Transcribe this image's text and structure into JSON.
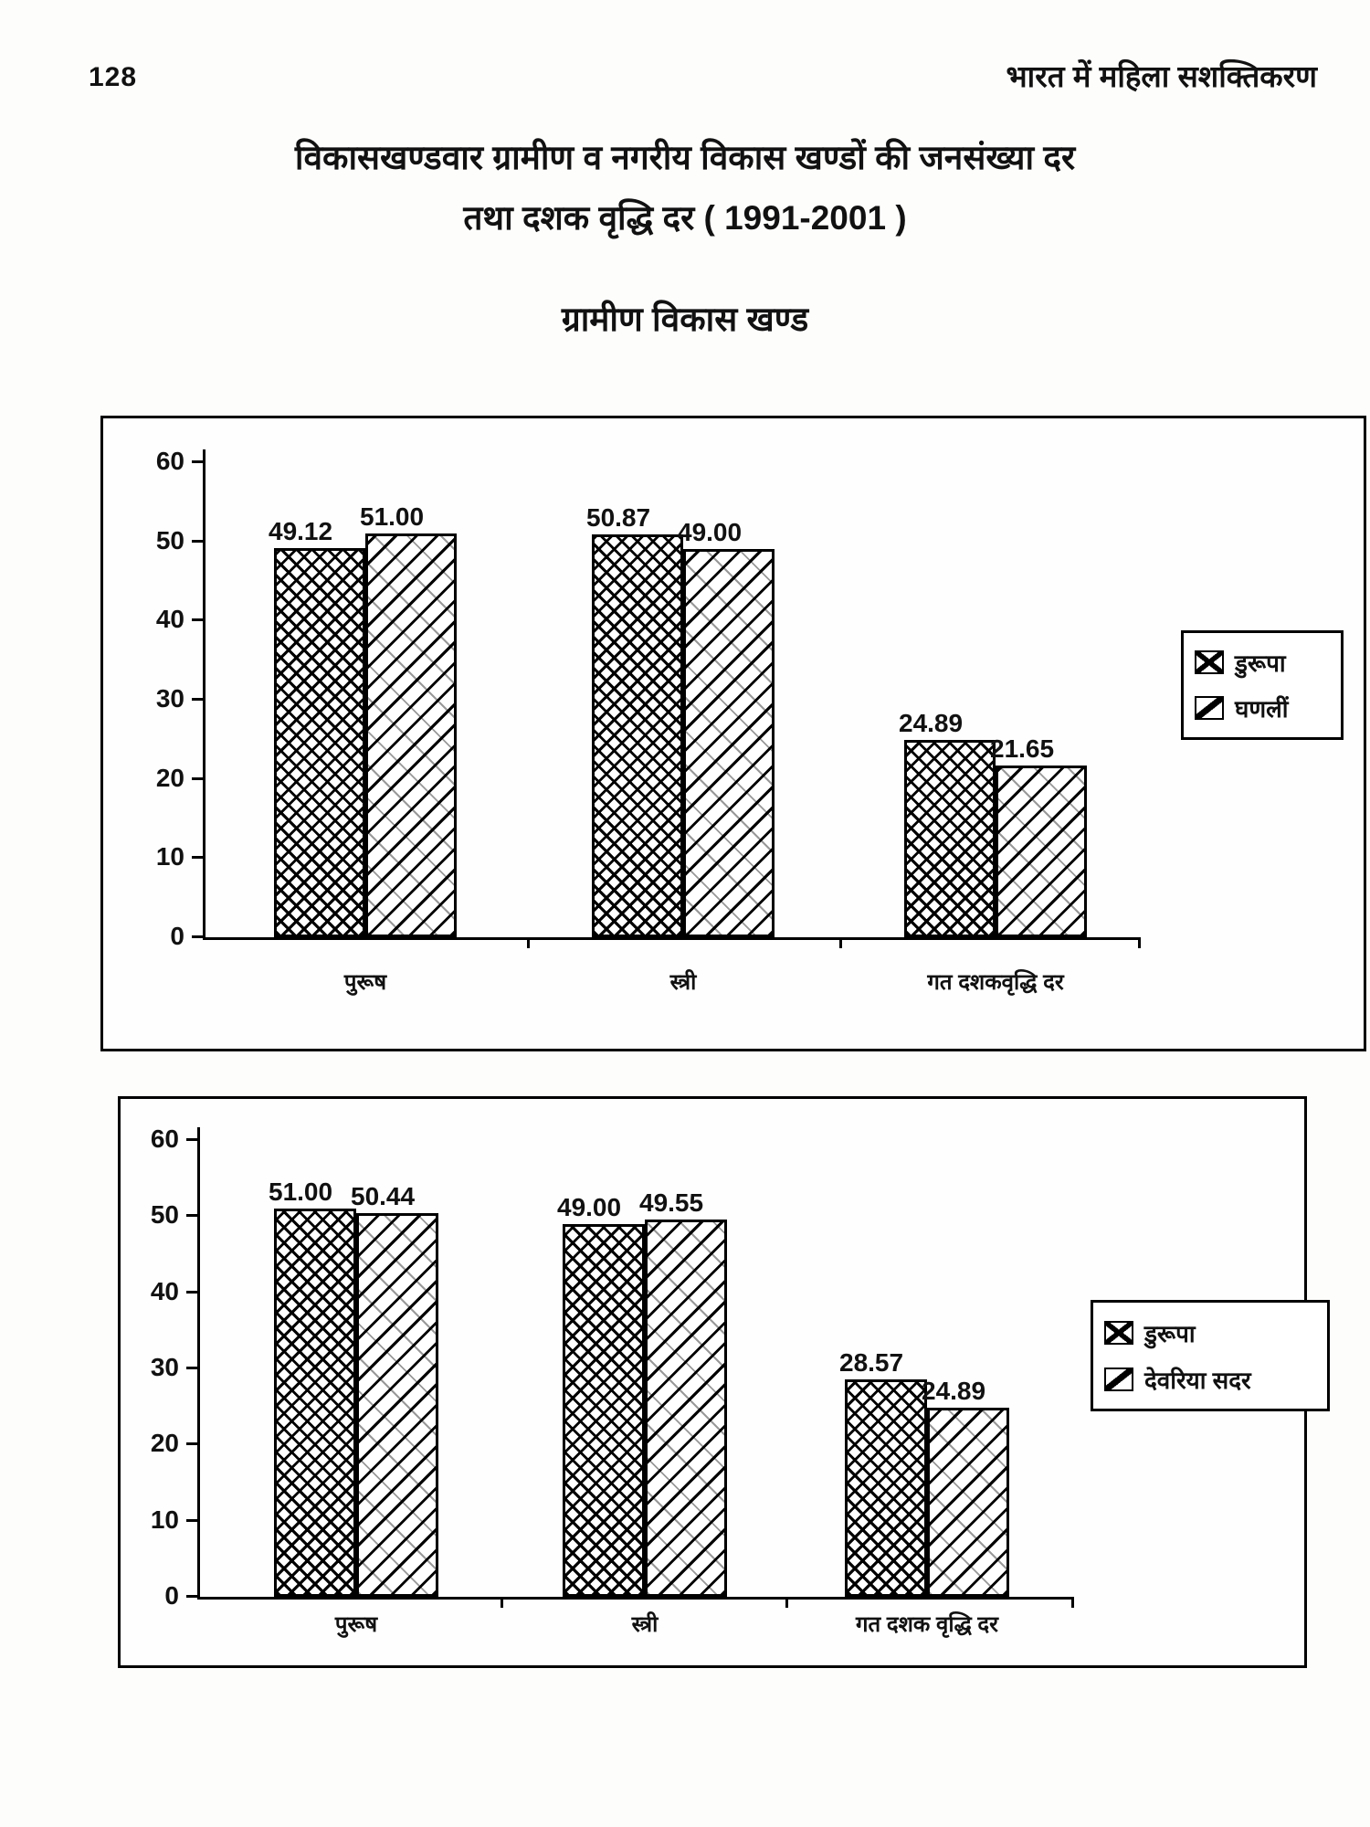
{
  "page": {
    "number": "128",
    "header_right": "भारत में महिला सशक्तिकरण"
  },
  "title": {
    "line1": "विकासखण्डवार ग्रामीण व नगरीय विकास खण्डों की जनसंख्या दर",
    "line2": "तथा दशक वृद्धि दर ( 1991-2001 )",
    "section": "ग्रामीण विकास खण्ड"
  },
  "chart_data": [
    {
      "type": "bar",
      "title": "",
      "categories": [
        "पुरूष",
        "स्त्री",
        "गत दशकवृद्धि दर"
      ],
      "series": [
        {
          "name": "डुरूपा",
          "pattern": "dense-crosshatch",
          "values": [
            49.12,
            50.87,
            24.89
          ]
        },
        {
          "name": "घणलीं",
          "pattern": "light-diagonal-weave",
          "values": [
            51.0,
            49.0,
            21.65
          ]
        }
      ],
      "value_labels": [
        "49.12",
        "51.00",
        "50.87",
        "49.00",
        "24.89",
        "21.65"
      ],
      "xlabel": "",
      "ylabel": "",
      "ylim": [
        0,
        60
      ],
      "yticks": [
        0,
        10,
        20,
        30,
        40,
        50,
        60
      ],
      "grid": false,
      "legend_position": "right"
    },
    {
      "type": "bar",
      "title": "",
      "categories": [
        "पुरूष",
        "स्त्री",
        "गत दशक वृद्धि दर"
      ],
      "series": [
        {
          "name": "डुरूपा",
          "pattern": "dense-crosshatch",
          "values": [
            51.0,
            49.0,
            28.57
          ]
        },
        {
          "name": "देवरिया सदर",
          "pattern": "light-diagonal-weave",
          "values": [
            50.44,
            49.55,
            24.89
          ]
        }
      ],
      "value_labels": [
        "51.00",
        "50.44",
        "49.00",
        "49.55",
        "28.57",
        "24.89"
      ],
      "xlabel": "",
      "ylabel": "",
      "ylim": [
        0,
        60
      ],
      "yticks": [
        0,
        10,
        20,
        30,
        40,
        50,
        60
      ],
      "grid": false,
      "legend_position": "right"
    }
  ]
}
